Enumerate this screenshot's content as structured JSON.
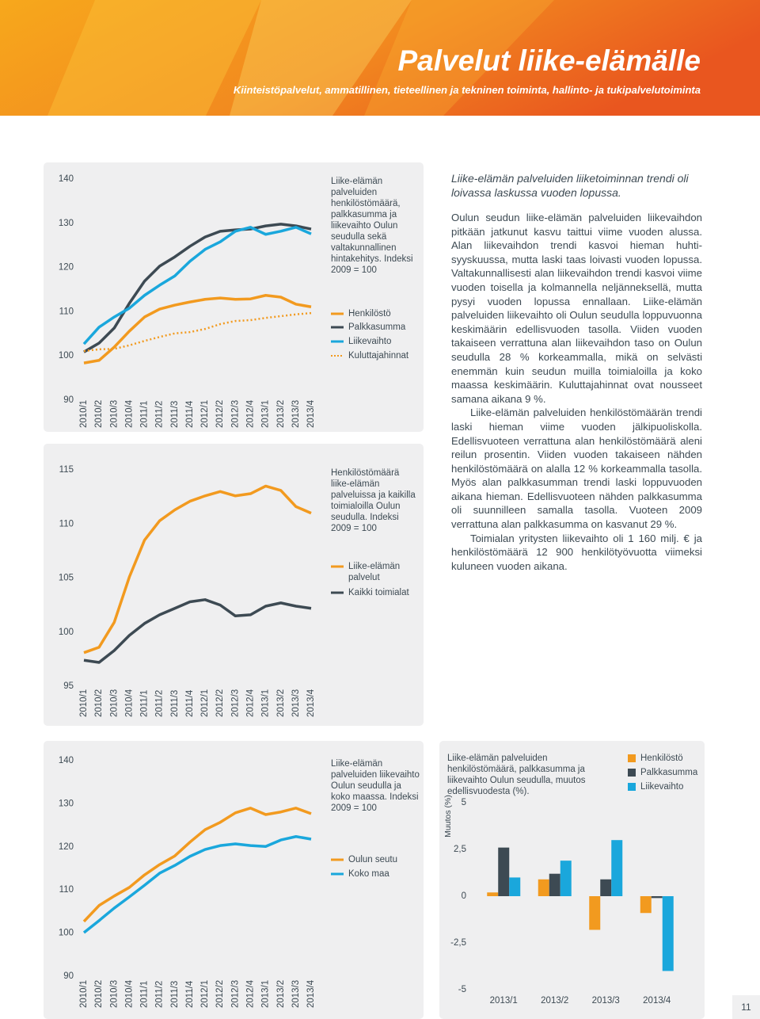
{
  "header": {
    "title": "Palvelut liike-elämälle",
    "subtitle": "Kiinteistöpalvelut, ammatillinen, tieteellinen ja tekninen toiminta, hallinto- ja tukipalvelutoiminta"
  },
  "chart_data": [
    {
      "type": "line",
      "title": "Liike-elämän palveluiden henkilöstömäärä, palkkasumma ja liikevaihto Oulun seudulla sekä valtakunnallinen hintakehitys. Indeksi 2009 = 100",
      "categories": [
        "2010/1",
        "2010/2",
        "2010/3",
        "2010/4",
        "2011/1",
        "2011/2",
        "2011/3",
        "2011/4",
        "2012/1",
        "2012/2",
        "2012/3",
        "2012/4",
        "2013/1",
        "2013/2",
        "2013/3",
        "2013/4"
      ],
      "ylim": [
        90,
        140
      ],
      "yticks": [
        90,
        100,
        110,
        120,
        130,
        140
      ],
      "grid": false,
      "series": [
        {
          "name": "Henkilöstö",
          "color": "#f29a1f",
          "line_style": "solid",
          "values": [
            98.4,
            99.0,
            102.0,
            105.6,
            108.8,
            110.6,
            111.5,
            112.2,
            112.8,
            113.1,
            112.8,
            112.9,
            113.7,
            113.3,
            111.7,
            111.1
          ]
        },
        {
          "name": "Palkkasumma",
          "color": "#3d4a53",
          "line_style": "solid",
          "values": [
            100.9,
            102.9,
            106.3,
            111.9,
            116.9,
            120.3,
            122.4,
            124.8,
            126.9,
            128.2,
            128.5,
            128.7,
            129.4,
            129.8,
            129.4,
            128.7
          ]
        },
        {
          "name": "Liikevaihto",
          "color": "#1aa7dc",
          "line_style": "solid",
          "values": [
            102.7,
            106.5,
            108.8,
            110.8,
            113.7,
            116.0,
            118.1,
            121.4,
            124.1,
            125.8,
            128.2,
            129.1,
            127.5,
            128.2,
            129.1,
            127.6
          ]
        },
        {
          "name": "Kuluttajahinnat",
          "color": "#f29a1f",
          "line_style": "dotted",
          "values": [
            101.1,
            101.5,
            101.6,
            102.4,
            103.4,
            104.3,
            105.1,
            105.4,
            106.1,
            107.2,
            107.9,
            108.1,
            108.6,
            109.0,
            109.4,
            109.7
          ]
        }
      ]
    },
    {
      "type": "line",
      "title": "Henkilöstömäärä liike-elämän palveluissa ja kaikilla toimialoilla Oulun seudulla. Indeksi 2009 = 100",
      "categories": [
        "2010/1",
        "2010/2",
        "2010/3",
        "2010/4",
        "2011/1",
        "2011/2",
        "2011/3",
        "2011/4",
        "2012/1",
        "2012/2",
        "2012/3",
        "2012/4",
        "2013/1",
        "2013/2",
        "2013/3",
        "2013/4"
      ],
      "ylim": [
        95,
        115
      ],
      "yticks": [
        95,
        100,
        105,
        110,
        115
      ],
      "grid": false,
      "series": [
        {
          "name": "Liike-elämän palvelut",
          "color": "#f29a1f",
          "line_style": "solid",
          "values": [
            98.1,
            98.6,
            100.9,
            105.1,
            108.5,
            110.3,
            111.3,
            112.1,
            112.6,
            113.0,
            112.6,
            112.8,
            113.5,
            113.1,
            111.6,
            111.0
          ]
        },
        {
          "name": "Kaikki toimialat",
          "color": "#3d4a53",
          "line_style": "solid",
          "values": [
            97.4,
            97.2,
            98.3,
            99.7,
            100.8,
            101.6,
            102.2,
            102.8,
            103.0,
            102.5,
            101.5,
            101.6,
            102.4,
            102.7,
            102.4,
            102.2
          ]
        }
      ]
    },
    {
      "type": "line",
      "title": "Liike-elämän palveluiden liikevaihto Oulun seudulla ja koko maassa. Indeksi 2009 = 100",
      "categories": [
        "2010/1",
        "2010/2",
        "2010/3",
        "2010/4",
        "2011/1",
        "2011/2",
        "2011/3",
        "2011/4",
        "2012/1",
        "2012/2",
        "2012/3",
        "2012/4",
        "2013/1",
        "2013/2",
        "2013/3",
        "2013/4"
      ],
      "ylim": [
        90,
        140
      ],
      "yticks": [
        90,
        100,
        110,
        120,
        130,
        140
      ],
      "grid": false,
      "series": [
        {
          "name": "Oulun seutu",
          "color": "#f29a1f",
          "line_style": "solid",
          "values": [
            102.7,
            106.4,
            108.6,
            110.6,
            113.5,
            115.9,
            117.9,
            121.1,
            124.0,
            125.7,
            127.9,
            129.0,
            127.5,
            128.1,
            129.0,
            127.7
          ]
        },
        {
          "name": "Koko maa",
          "color": "#1aa7dc",
          "line_style": "solid",
          "values": [
            100.1,
            102.9,
            105.8,
            108.4,
            111.1,
            113.9,
            115.7,
            117.8,
            119.4,
            120.3,
            120.7,
            120.3,
            120.1,
            121.6,
            122.4,
            121.8
          ]
        }
      ]
    },
    {
      "type": "bar",
      "title": "Liike-elämän palveluiden henkilöstömäärä, palkkasumma ja liikevaihto Oulun seudulla, muutos edellisvuodesta (%).",
      "y_label": "Muutos (%)",
      "categories": [
        "2013/1",
        "2013/2",
        "2013/3",
        "2013/4"
      ],
      "ylim": [
        -5,
        5
      ],
      "yticks": [
        -5,
        {
          "value": -2.5,
          "label": "-2,5"
        },
        0,
        {
          "value": 2.5,
          "label": "2,5"
        },
        5
      ],
      "grid": false,
      "series": [
        {
          "name": "Henkilöstö",
          "color": "#f29a1f",
          "values": [
            0.2,
            0.9,
            -1.8,
            -0.9
          ]
        },
        {
          "name": "Palkkasumma",
          "color": "#3d4a53",
          "values": [
            2.6,
            1.2,
            0.9,
            -0.1
          ]
        },
        {
          "name": "Liikevaihto",
          "color": "#1aa7dc",
          "values": [
            1.0,
            1.9,
            3.0,
            -4.0
          ]
        }
      ]
    }
  ],
  "article": {
    "lead": "Liike-elämän palveluiden liiketoiminnan trendi oli loivassa laskussa vuoden lopussa.",
    "paragraphs": [
      "Oulun seudun liike-elämän palveluiden liikevaihdon pitkään jatkunut kasvu taittui viime vuoden alussa. Alan liikevaihdon trendi kasvoi hieman huhti-syyskuussa, mutta laski taas loivasti vuoden lopussa. Valtakunnallisesti alan liikevaihdon trendi kasvoi viime vuoden toisella ja kolmannella neljänneksellä, mutta pysyi vuoden lopussa ennallaan. Liike-elämän palveluiden liikevaihto oli Oulun seudulla loppuvuonna keskimäärin edellisvuoden tasolla. Viiden vuoden takaiseen verrattuna alan liikevaihdon taso on Oulun seudulla 28 % korkeammalla, mikä on selvästi enemmän kuin seudun muilla toimialoilla ja koko maassa keskimäärin. Kuluttajahinnat ovat nousseet samana aikana 9 %.",
      "Liike-elämän palveluiden henkilöstömäärän trendi laski hieman viime vuoden jälkipuoliskolla. Edellisvuoteen verrattuna alan henkilöstömäärä aleni reilun prosentin. Viiden vuoden takaiseen nähden henkilöstömäärä on alalla 12 % korkeammalla tasolla. Myös alan palkkasumman trendi laski loppuvuoden aikana hieman. Edellisvuoteen nähden palkkasumma oli suunnilleen samalla tasolla. Vuoteen 2009 verrattuna alan palkkasumma on kasvanut 29 %.",
      "Toimialan yritysten liikevaihto oli 1 160 milj. € ja henkilöstömäärä 12 900 henkilötyövuotta viimeksi kuluneen vuoden aikana."
    ]
  },
  "page_number": "11"
}
